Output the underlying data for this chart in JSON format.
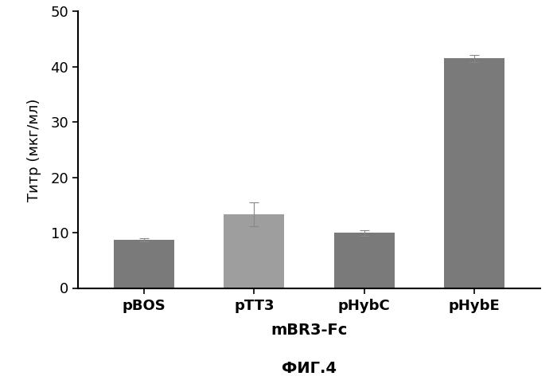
{
  "categories": [
    "pBOS",
    "pTT3",
    "pHybC",
    "pHybE"
  ],
  "values": [
    8.7,
    13.3,
    10.0,
    41.5
  ],
  "errors": [
    0.3,
    2.2,
    0.5,
    0.7
  ],
  "bar_colors": [
    "#7a7a7a",
    "#9e9e9e",
    "#7a7a7a",
    "#7a7a7a"
  ],
  "ylabel": "Титр (мкг/мл)",
  "xlabel_main": "mBR3-Fc",
  "xlabel_sub": "ФИГ.4",
  "ylim": [
    0,
    50
  ],
  "yticks": [
    0,
    10,
    20,
    30,
    40,
    50
  ],
  "background_color": "#ffffff",
  "bar_width": 0.55,
  "figsize": [
    7.0,
    4.82
  ],
  "dpi": 100,
  "error_color": "#888888",
  "spine_color": "#000000"
}
